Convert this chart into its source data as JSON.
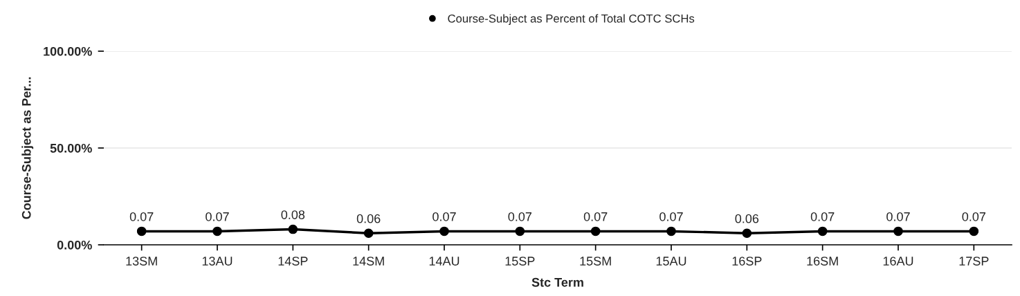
{
  "chart_data": {
    "type": "line",
    "xlabel": "Stc Term",
    "ylabel": "Course-Subject as Per...",
    "categories": [
      "13SM",
      "13AU",
      "14SP",
      "14SM",
      "14AU",
      "15SP",
      "15SM",
      "15AU",
      "16SP",
      "16SM",
      "16AU",
      "17SP"
    ],
    "series": [
      {
        "name": "Course-Subject as Percent of Total COTC SCHs",
        "color": "#000000",
        "values": [
          0.07,
          0.07,
          0.08,
          0.06,
          0.07,
          0.07,
          0.07,
          0.07,
          0.06,
          0.07,
          0.07,
          0.07
        ]
      }
    ],
    "ylim": [
      0,
      1
    ],
    "yticks": [
      {
        "value": 0,
        "label": "0.00%"
      },
      {
        "value": 0.5,
        "label": "50.00%"
      },
      {
        "value": 1,
        "label": "100.00%"
      }
    ],
    "grid": "y",
    "legend": "top",
    "marker": "circle",
    "line_style": "solid",
    "data_labels": true
  }
}
